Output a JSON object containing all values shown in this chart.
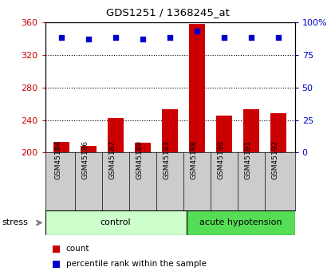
{
  "title": "GDS1251 / 1368245_at",
  "samples": [
    "GSM45184",
    "GSM45186",
    "GSM45187",
    "GSM45189",
    "GSM45193",
    "GSM45188",
    "GSM45190",
    "GSM45191",
    "GSM45192"
  ],
  "counts": [
    213,
    208,
    242,
    212,
    253,
    358,
    245,
    253,
    248
  ],
  "percentile_ranks": [
    88,
    87,
    88,
    87,
    88,
    93,
    88,
    88,
    88
  ],
  "bar_color": "#cc0000",
  "dot_color": "#0000cc",
  "ylim_left": [
    200,
    360
  ],
  "ylim_right": [
    0,
    100
  ],
  "yticks_left": [
    200,
    240,
    280,
    320,
    360
  ],
  "yticks_right": [
    0,
    25,
    50,
    75,
    100
  ],
  "yticklabels_right": [
    "0",
    "25",
    "50",
    "75",
    "100%"
  ],
  "control_color": "#ccffcc",
  "acute_color": "#55dd55",
  "gray_color": "#cccccc",
  "n_control": 5,
  "n_acute": 4
}
